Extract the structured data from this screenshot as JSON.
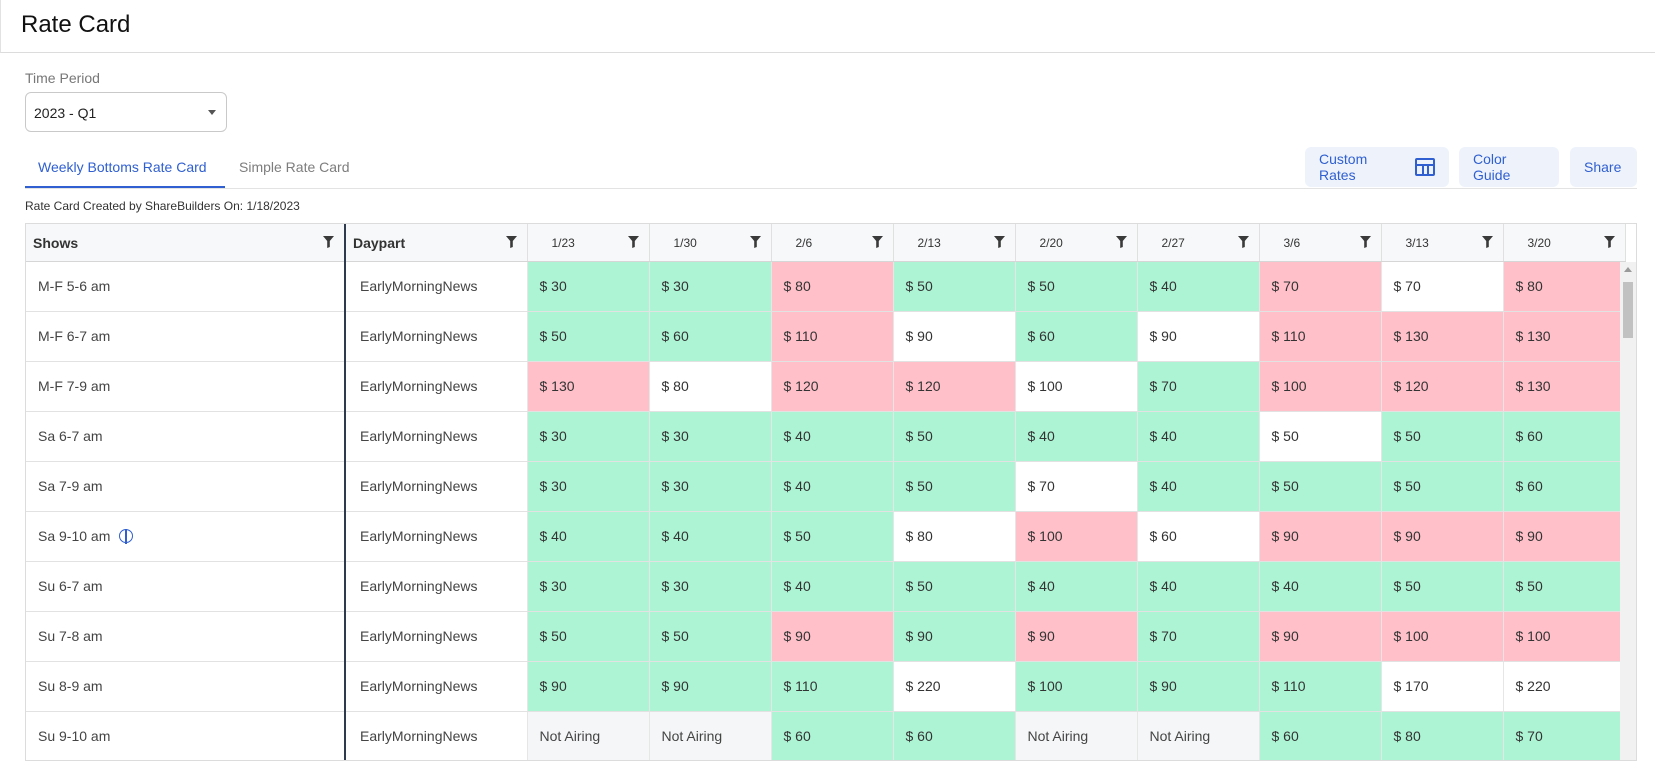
{
  "header": {
    "title": "Rate Card"
  },
  "time_period": {
    "label": "Time Period",
    "value": "2023 - Q1"
  },
  "tabs": [
    {
      "label": "Weekly Bottoms Rate Card",
      "active": true
    },
    {
      "label": "Simple Rate Card",
      "active": false
    }
  ],
  "actions": {
    "custom_rates": "Custom Rates",
    "color_guide": "Color Guide",
    "share": "Share"
  },
  "created_note": "Rate Card Created by ShareBuilders On: 1/18/2023",
  "colors": {
    "accent": "#2f5fd0",
    "green": "#adf4d5",
    "red": "#ffc0c9",
    "white": "#ffffff",
    "not_airing": "#f5f6f8"
  },
  "table": {
    "col_shows": "Shows",
    "col_daypart": "Daypart",
    "weeks": [
      "1/23",
      "1/30",
      "2/6",
      "2/13",
      "2/20",
      "2/27",
      "3/6",
      "3/13",
      "3/20"
    ],
    "rows": [
      {
        "show": "M-F 5-6 am",
        "daypart": "EarlyMorningNews",
        "info": false,
        "cells": [
          {
            "v": "$ 30",
            "c": "green"
          },
          {
            "v": "$ 30",
            "c": "green"
          },
          {
            "v": "$ 80",
            "c": "red"
          },
          {
            "v": "$ 50",
            "c": "green"
          },
          {
            "v": "$ 50",
            "c": "green"
          },
          {
            "v": "$ 40",
            "c": "green"
          },
          {
            "v": "$ 70",
            "c": "red"
          },
          {
            "v": "$ 70",
            "c": "white"
          },
          {
            "v": "$ 80",
            "c": "red"
          }
        ]
      },
      {
        "show": "M-F 6-7 am",
        "daypart": "EarlyMorningNews",
        "info": false,
        "cells": [
          {
            "v": "$ 50",
            "c": "green"
          },
          {
            "v": "$ 60",
            "c": "green"
          },
          {
            "v": "$ 110",
            "c": "red"
          },
          {
            "v": "$ 90",
            "c": "white"
          },
          {
            "v": "$ 60",
            "c": "green"
          },
          {
            "v": "$ 90",
            "c": "white"
          },
          {
            "v": "$ 110",
            "c": "red"
          },
          {
            "v": "$ 130",
            "c": "red"
          },
          {
            "v": "$ 130",
            "c": "red"
          }
        ]
      },
      {
        "show": "M-F 7-9 am",
        "daypart": "EarlyMorningNews",
        "info": false,
        "cells": [
          {
            "v": "$ 130",
            "c": "red"
          },
          {
            "v": "$ 80",
            "c": "white"
          },
          {
            "v": "$ 120",
            "c": "red"
          },
          {
            "v": "$ 120",
            "c": "red"
          },
          {
            "v": "$ 100",
            "c": "white"
          },
          {
            "v": "$ 70",
            "c": "green"
          },
          {
            "v": "$ 100",
            "c": "red"
          },
          {
            "v": "$ 120",
            "c": "red"
          },
          {
            "v": "$ 130",
            "c": "red"
          }
        ]
      },
      {
        "show": "Sa 6-7 am",
        "daypart": "EarlyMorningNews",
        "info": false,
        "cells": [
          {
            "v": "$ 30",
            "c": "green"
          },
          {
            "v": "$ 30",
            "c": "green"
          },
          {
            "v": "$ 40",
            "c": "green"
          },
          {
            "v": "$ 50",
            "c": "green"
          },
          {
            "v": "$ 40",
            "c": "green"
          },
          {
            "v": "$ 40",
            "c": "green"
          },
          {
            "v": "$ 50",
            "c": "white"
          },
          {
            "v": "$ 50",
            "c": "green"
          },
          {
            "v": "$ 60",
            "c": "green"
          }
        ]
      },
      {
        "show": "Sa 7-9 am",
        "daypart": "EarlyMorningNews",
        "info": false,
        "cells": [
          {
            "v": "$ 30",
            "c": "green"
          },
          {
            "v": "$ 30",
            "c": "green"
          },
          {
            "v": "$ 40",
            "c": "green"
          },
          {
            "v": "$ 50",
            "c": "green"
          },
          {
            "v": "$ 70",
            "c": "white"
          },
          {
            "v": "$ 40",
            "c": "green"
          },
          {
            "v": "$ 50",
            "c": "green"
          },
          {
            "v": "$ 50",
            "c": "green"
          },
          {
            "v": "$ 60",
            "c": "green"
          }
        ]
      },
      {
        "show": "Sa 9-10 am",
        "daypart": "EarlyMorningNews",
        "info": true,
        "cells": [
          {
            "v": "$ 40",
            "c": "green"
          },
          {
            "v": "$ 40",
            "c": "green"
          },
          {
            "v": "$ 50",
            "c": "green"
          },
          {
            "v": "$ 80",
            "c": "white"
          },
          {
            "v": "$ 100",
            "c": "red"
          },
          {
            "v": "$ 60",
            "c": "white"
          },
          {
            "v": "$ 90",
            "c": "red"
          },
          {
            "v": "$ 90",
            "c": "red"
          },
          {
            "v": "$ 90",
            "c": "red"
          }
        ]
      },
      {
        "show": "Su 6-7 am",
        "daypart": "EarlyMorningNews",
        "info": false,
        "cells": [
          {
            "v": "$ 30",
            "c": "green"
          },
          {
            "v": "$ 30",
            "c": "green"
          },
          {
            "v": "$ 40",
            "c": "green"
          },
          {
            "v": "$ 50",
            "c": "green"
          },
          {
            "v": "$ 40",
            "c": "green"
          },
          {
            "v": "$ 40",
            "c": "green"
          },
          {
            "v": "$ 40",
            "c": "green"
          },
          {
            "v": "$ 50",
            "c": "green"
          },
          {
            "v": "$ 50",
            "c": "green"
          }
        ]
      },
      {
        "show": "Su 7-8 am",
        "daypart": "EarlyMorningNews",
        "info": false,
        "cells": [
          {
            "v": "$ 50",
            "c": "green"
          },
          {
            "v": "$ 50",
            "c": "green"
          },
          {
            "v": "$ 90",
            "c": "red"
          },
          {
            "v": "$ 90",
            "c": "green"
          },
          {
            "v": "$ 90",
            "c": "red"
          },
          {
            "v": "$ 70",
            "c": "green"
          },
          {
            "v": "$ 90",
            "c": "red"
          },
          {
            "v": "$ 100",
            "c": "red"
          },
          {
            "v": "$ 100",
            "c": "red"
          }
        ]
      },
      {
        "show": "Su 8-9 am",
        "daypart": "EarlyMorningNews",
        "info": false,
        "cells": [
          {
            "v": "$ 90",
            "c": "green"
          },
          {
            "v": "$ 90",
            "c": "green"
          },
          {
            "v": "$ 110",
            "c": "green"
          },
          {
            "v": "$ 220",
            "c": "white"
          },
          {
            "v": "$ 100",
            "c": "green"
          },
          {
            "v": "$ 90",
            "c": "green"
          },
          {
            "v": "$ 110",
            "c": "green"
          },
          {
            "v": "$ 170",
            "c": "white"
          },
          {
            "v": "$ 220",
            "c": "white"
          }
        ]
      },
      {
        "show": "Su 9-10 am",
        "daypart": "EarlyMorningNews",
        "info": false,
        "cells": [
          {
            "v": "Not Airing",
            "c": "na"
          },
          {
            "v": "Not Airing",
            "c": "na"
          },
          {
            "v": "$ 60",
            "c": "green"
          },
          {
            "v": "$ 60",
            "c": "green"
          },
          {
            "v": "Not Airing",
            "c": "na"
          },
          {
            "v": "Not Airing",
            "c": "na"
          },
          {
            "v": "$ 60",
            "c": "green"
          },
          {
            "v": "$ 80",
            "c": "green"
          },
          {
            "v": "$ 70",
            "c": "green"
          }
        ]
      }
    ]
  }
}
